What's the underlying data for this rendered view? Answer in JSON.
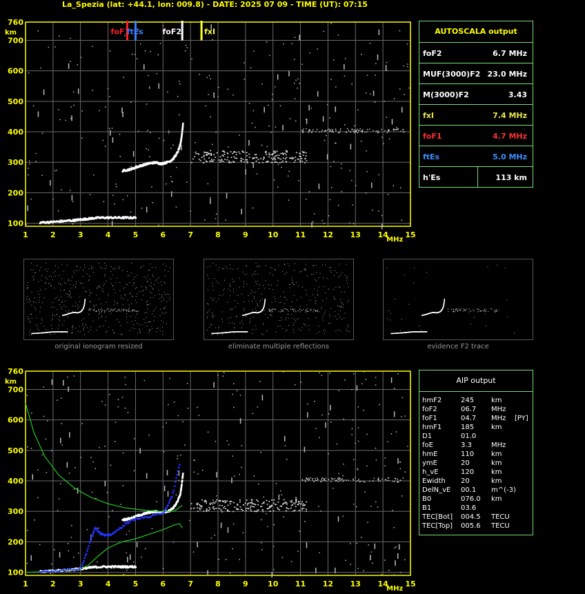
{
  "title": "La_Spezia (lat: +44.1, lon: 009.8) - DATE: 2025 07 09 - TIME (UT): 07:15",
  "colors": {
    "axis": "#ffff00",
    "grid": "#6b6b6b",
    "panel_border": "#7ddc7d",
    "foF1": "#ff2020",
    "ftEs": "#3a7dff",
    "foF2": "#ffffff",
    "fxI": "#ffff33",
    "profile": "#22cc22",
    "aip_points": "#2233ff"
  },
  "axis_labels": {
    "y_unit": "km",
    "x_unit": "MHz"
  },
  "markers": [
    {
      "name": "foF1",
      "label": "foF1",
      "freq": 4.7,
      "color": "#ff2020"
    },
    {
      "name": "ftEs",
      "label": "ftEs",
      "freq": 5.0,
      "color": "#3a7dff"
    },
    {
      "name": "foF2",
      "label": "foF2",
      "freq": 6.7,
      "color": "#ffffff"
    },
    {
      "name": "fxI",
      "label": "fxI",
      "freq": 7.4,
      "color": "#ffff33"
    }
  ],
  "autoscala": {
    "title": "AUTOSCALA output",
    "rows": [
      {
        "key": "foF2",
        "value": "6.7 MHz",
        "color": "#ffffff"
      },
      {
        "key": "MUF(3000)F2",
        "value": "23.0 MHz",
        "color": "#ffffff"
      },
      {
        "key": "M(3000)F2",
        "value": "3.43",
        "color": "#ffffff"
      },
      {
        "key": "fxI",
        "value": "7.4 MHz",
        "color": "#e8e84a"
      },
      {
        "key": "foF1",
        "value": "4.7 MHz",
        "color": "#ff3030"
      },
      {
        "key": "ftEs",
        "value": "5.0 MHz",
        "color": "#3a8dff"
      },
      {
        "key": "h'Es",
        "value": "113     km",
        "color": "#ffffff"
      }
    ]
  },
  "thumb_captions": [
    "original ionogram resized",
    "eliminate multiple reflections",
    "evidence F2 trace"
  ],
  "aip": {
    "title": "AIP output",
    "rows": [
      [
        "hmF2",
        "245",
        "km",
        ""
      ],
      [
        "foF2",
        "06.7",
        "MHz",
        ""
      ],
      [
        "foF1",
        "04.7",
        "MHz",
        "[PY]"
      ],
      [
        "hmF1",
        "185",
        "km",
        ""
      ],
      [
        "D1",
        "01.0",
        "",
        ""
      ],
      [
        "foE",
        "3.3",
        "MHz",
        ""
      ],
      [
        "hmE",
        "110",
        "km",
        ""
      ],
      [
        "ymE",
        "20",
        "km",
        ""
      ],
      [
        "h_vE",
        "120",
        "km",
        ""
      ],
      [
        "Ewidth",
        "20",
        "km",
        ""
      ],
      [
        "DelN_vE",
        "00.1",
        "m^(-3)",
        ""
      ],
      [
        "B0",
        "076.0",
        "km",
        ""
      ],
      [
        "B1",
        "03.6",
        "",
        ""
      ],
      [
        "TEC[Bot]",
        "004.5",
        "TECU",
        ""
      ],
      [
        "TEC[Top]",
        "005.6",
        "TECU",
        ""
      ]
    ]
  },
  "chart_data": [
    {
      "type": "scatter",
      "xlim": [
        1,
        15
      ],
      "ylim": [
        90,
        760
      ],
      "x_ticks": [
        1,
        2,
        3,
        4,
        5,
        6,
        7,
        8,
        9,
        10,
        11,
        12,
        13,
        14,
        15
      ],
      "y_ticks": [
        100,
        200,
        300,
        400,
        500,
        600,
        700,
        760
      ],
      "series": [
        {
          "name": "E/Es trace",
          "x": [
            1.5,
            1.8,
            2.1,
            2.4,
            2.7,
            2.9,
            3.1,
            3.3,
            3.5,
            3.8,
            4.1,
            4.4,
            4.7,
            5.0
          ],
          "y": [
            105,
            106,
            108,
            110,
            112,
            114,
            116,
            118,
            120,
            121,
            121,
            121,
            121,
            121
          ]
        },
        {
          "name": "F1 trace",
          "x": [
            4.5,
            4.7,
            4.9,
            5.1,
            5.3,
            5.5,
            5.7,
            5.9,
            6.0
          ],
          "y": [
            275,
            278,
            283,
            290,
            295,
            300,
            302,
            298,
            300
          ]
        },
        {
          "name": "F2 trace",
          "x": [
            6.0,
            6.2,
            6.35,
            6.5,
            6.6,
            6.65,
            6.7
          ],
          "y": [
            300,
            305,
            315,
            335,
            360,
            390,
            430
          ]
        },
        {
          "name": "spread",
          "x": [
            7.0,
            7.5,
            8.0,
            8.5,
            9.0,
            9.5,
            10.0,
            10.5,
            11.0,
            12.0,
            13.0,
            14.0
          ],
          "y": [
            310,
            315,
            318,
            320,
            318,
            315,
            313,
            312,
            405,
            405,
            405,
            405
          ]
        }
      ],
      "markers": [
        4.7,
        5.0,
        6.7,
        7.4
      ]
    },
    {
      "type": "line",
      "xlim": [
        1,
        15
      ],
      "ylim": [
        90,
        760
      ],
      "x_ticks": [
        1,
        2,
        3,
        4,
        5,
        6,
        7,
        8,
        9,
        10,
        11,
        12,
        13,
        14,
        15
      ],
      "y_ticks": [
        100,
        200,
        300,
        400,
        500,
        600,
        700,
        760
      ],
      "series": [
        {
          "name": "virtual height (green upper)",
          "x": [
            1.0,
            1.3,
            1.7,
            2.2,
            2.8,
            3.4,
            4.0,
            4.6,
            5.2,
            5.8,
            6.4,
            6.7
          ],
          "y": [
            655,
            560,
            480,
            420,
            375,
            345,
            325,
            312,
            305,
            300,
            300,
            320
          ]
        },
        {
          "name": "true height profile",
          "x": [
            1.0,
            2.0,
            3.0,
            3.3,
            3.6,
            4.0,
            4.5,
            5.0,
            5.5,
            6.0,
            6.4,
            6.6,
            6.7
          ],
          "y": [
            100,
            103,
            110,
            125,
            150,
            180,
            200,
            210,
            225,
            240,
            255,
            260,
            245
          ]
        },
        {
          "name": "AIP points",
          "x": [
            1.5,
            2.2,
            3.0,
            3.3,
            3.5,
            3.7,
            3.9,
            4.2,
            4.6,
            5.0,
            5.5,
            6.0,
            6.3,
            6.6
          ],
          "y": [
            105,
            108,
            115,
            200,
            250,
            230,
            222,
            232,
            262,
            280,
            285,
            300,
            350,
            470
          ]
        }
      ]
    }
  ]
}
